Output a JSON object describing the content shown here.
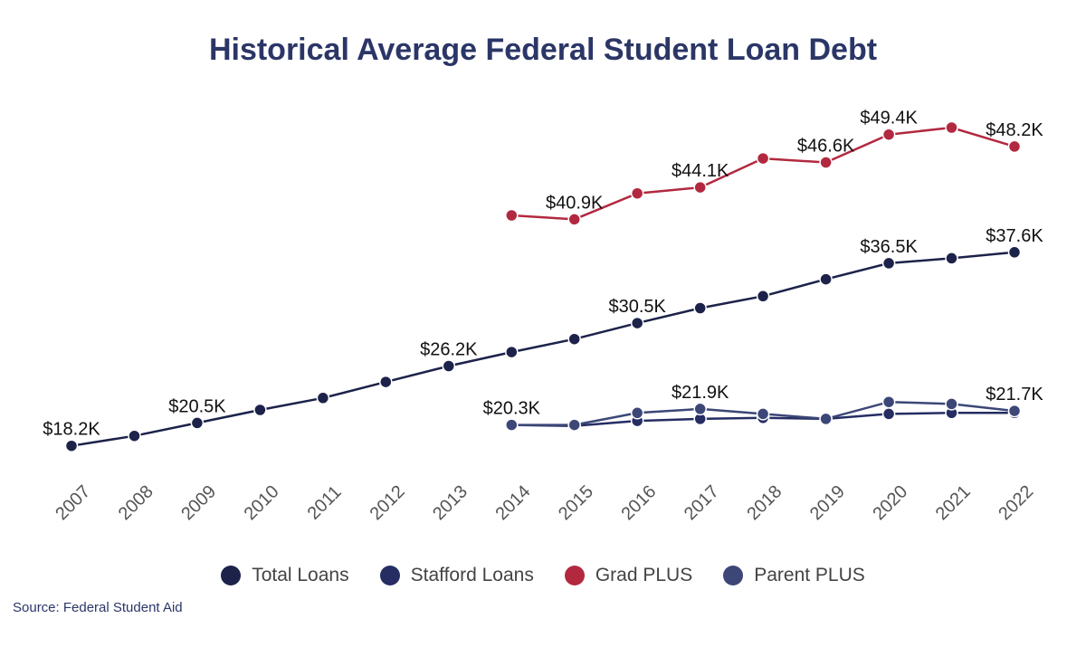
{
  "chart_data": {
    "type": "line",
    "title": "Historical Average Federal Student Loan Debt",
    "x": [
      "2007",
      "2008",
      "2009",
      "2010",
      "2011",
      "2012",
      "2013",
      "2014",
      "2015",
      "2016",
      "2017",
      "2018",
      "2019",
      "2020",
      "2021",
      "2022"
    ],
    "xlabel": "",
    "ylabel": "",
    "ylim": [
      15000,
      52000
    ],
    "grid": false,
    "legend_position": "bottom",
    "series": [
      {
        "name": "Total Loans",
        "color": "#1c2249",
        "values": [
          18200,
          19200,
          20500,
          21800,
          23000,
          24600,
          26200,
          27600,
          28900,
          30500,
          32000,
          33200,
          34900,
          36500,
          37000,
          37600
        ],
        "labels": {
          "0": "$18.2K",
          "2": "$20.5K",
          "6": "$26.2K",
          "9": "$30.5K",
          "13": "$36.5K",
          "15": "$37.6K"
        }
      },
      {
        "name": "Stafford Loans",
        "color": "#252d63",
        "values": [
          null,
          null,
          null,
          null,
          null,
          null,
          null,
          20300,
          20200,
          20700,
          20900,
          21000,
          20900,
          21400,
          21500,
          21500
        ],
        "labels": {}
      },
      {
        "name": "Grad PLUS",
        "color": "#b2293f",
        "values": [
          null,
          null,
          null,
          null,
          null,
          null,
          null,
          41300,
          40900,
          43500,
          44100,
          47000,
          46600,
          49400,
          50100,
          48200
        ],
        "labels": {
          "8": "$40.9K",
          "10": "$44.1K",
          "12": "$46.6K",
          "13": "$49.4K",
          "15": "$48.2K"
        }
      },
      {
        "name": "Parent PLUS",
        "color": "#3c4777",
        "values": [
          null,
          null,
          null,
          null,
          null,
          null,
          null,
          20300,
          20300,
          21500,
          21900,
          21400,
          20900,
          22600,
          22400,
          21700
        ],
        "labels": {
          "7": "$20.3K",
          "10": "$21.9K",
          "15": "$21.7K"
        }
      }
    ]
  },
  "source": "Source: Federal Student Aid"
}
